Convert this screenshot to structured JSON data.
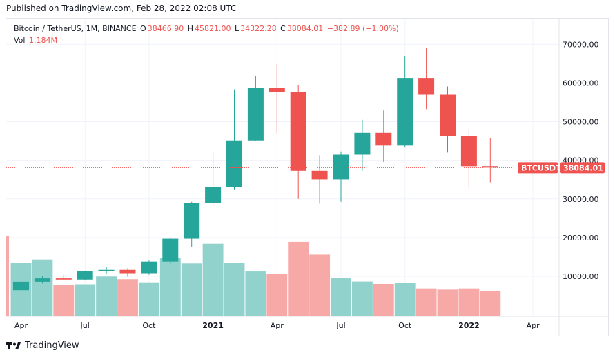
{
  "header": {
    "published": "Published on TradingView.com, Feb 28, 2022 02:08 UTC"
  },
  "legend": {
    "symbol": "Bitcoin / TetherUS, 1M, BINANCE",
    "o_label": "O",
    "o": "38466.90",
    "h_label": "H",
    "h": "45821.00",
    "l_label": "L",
    "l": "34322.28",
    "c_label": "C",
    "c": "38084.01",
    "change": "−382.89 (−1.00%)",
    "vol_label": "Vol",
    "vol": "1.184M"
  },
  "price_tag": {
    "symbol": "BTCUSDT",
    "value": "38084.01"
  },
  "brand": {
    "name": "TradingView"
  },
  "colors": {
    "up": "#26a69a",
    "down": "#ef5350",
    "vol_up": "#92d2cc",
    "vol_down": "#f7a9a7",
    "grid": "#f0f3fa",
    "text": "#131722"
  },
  "chart_data": {
    "type": "candlestick",
    "symbol": "BTCUSDT",
    "interval": "1M",
    "y_ticks": [
      "10000.00",
      "20000.00",
      "30000.00",
      "40000.00",
      "50000.00",
      "60000.00",
      "70000.00"
    ],
    "x_ticks": [
      {
        "label": "Apr",
        "index": 0,
        "bold": false
      },
      {
        "label": "Jul",
        "index": 3,
        "bold": false
      },
      {
        "label": "Oct",
        "index": 6,
        "bold": false
      },
      {
        "label": "2021",
        "index": 9,
        "bold": true
      },
      {
        "label": "Apr",
        "index": 12,
        "bold": false
      },
      {
        "label": "Jul",
        "index": 15,
        "bold": false
      },
      {
        "label": "Oct",
        "index": 18,
        "bold": false
      },
      {
        "label": "2022",
        "index": 21,
        "bold": true
      },
      {
        "label": "Apr",
        "index": 24,
        "bold": false
      }
    ],
    "last_price": 38084.01,
    "candles": [
      {
        "month": "2020-04",
        "open": 6400,
        "high": 9400,
        "low": 6150,
        "close": 8600
      },
      {
        "month": "2020-05",
        "open": 8600,
        "high": 10000,
        "low": 8150,
        "close": 9450
      },
      {
        "month": "2020-06",
        "open": 9450,
        "high": 10400,
        "low": 8900,
        "close": 9150
      },
      {
        "month": "2020-07",
        "open": 9150,
        "high": 11450,
        "low": 8950,
        "close": 11350
      },
      {
        "month": "2020-08",
        "open": 11350,
        "high": 12450,
        "low": 10600,
        "close": 11650
      },
      {
        "month": "2020-09",
        "open": 11650,
        "high": 12050,
        "low": 9900,
        "close": 10800
      },
      {
        "month": "2020-10",
        "open": 10800,
        "high": 14050,
        "low": 10400,
        "close": 13800
      },
      {
        "month": "2020-11",
        "open": 13800,
        "high": 19900,
        "low": 13200,
        "close": 19700
      },
      {
        "month": "2020-12",
        "open": 19700,
        "high": 29300,
        "low": 17600,
        "close": 28950
      },
      {
        "month": "2021-01",
        "open": 28950,
        "high": 41950,
        "low": 28150,
        "close": 33100
      },
      {
        "month": "2021-02",
        "open": 33100,
        "high": 58350,
        "low": 32300,
        "close": 45150
      },
      {
        "month": "2021-03",
        "open": 45150,
        "high": 61800,
        "low": 45000,
        "close": 58800
      },
      {
        "month": "2021-04",
        "open": 58800,
        "high": 64850,
        "low": 47000,
        "close": 57700
      },
      {
        "month": "2021-05",
        "open": 57700,
        "high": 59500,
        "low": 30000,
        "close": 37300
      },
      {
        "month": "2021-06",
        "open": 37300,
        "high": 41300,
        "low": 28800,
        "close": 35050
      },
      {
        "month": "2021-07",
        "open": 35050,
        "high": 42300,
        "low": 29300,
        "close": 41450
      },
      {
        "month": "2021-08",
        "open": 41450,
        "high": 50500,
        "low": 37300,
        "close": 47100
      },
      {
        "month": "2021-09",
        "open": 47100,
        "high": 52900,
        "low": 39600,
        "close": 43800
      },
      {
        "month": "2021-10",
        "open": 43800,
        "high": 67000,
        "low": 43300,
        "close": 61300
      },
      {
        "month": "2021-11",
        "open": 61300,
        "high": 69000,
        "low": 53250,
        "close": 56950
      },
      {
        "month": "2021-12",
        "open": 56950,
        "high": 59100,
        "low": 42000,
        "close": 46200
      },
      {
        "month": "2022-01",
        "open": 46200,
        "high": 47950,
        "low": 32900,
        "close": 38450
      },
      {
        "month": "2022-02",
        "open": 38466.9,
        "high": 45821.0,
        "low": 34322.28,
        "close": 38084.01
      }
    ],
    "volume": [
      13800,
      14700,
      8100,
      8300,
      10300,
      9600,
      8800,
      15000,
      13700,
      18800,
      13800,
      11600,
      11000,
      19300,
      16000,
      9900,
      9000,
      8400,
      8600,
      7200,
      6900,
      7200,
      6600
    ]
  }
}
